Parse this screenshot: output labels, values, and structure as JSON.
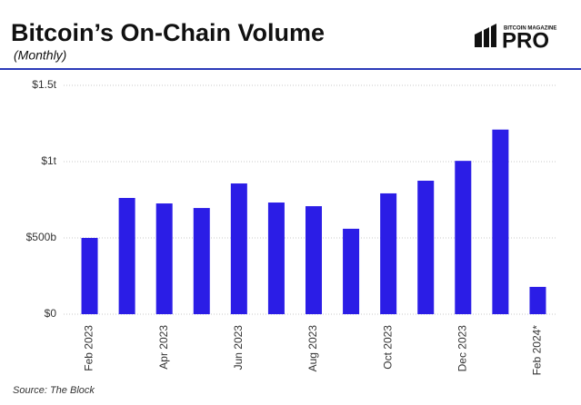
{
  "chart_data": {
    "type": "bar",
    "title": "Bitcoin’s On-Chain Volume",
    "subtitle": "(Monthly)",
    "brand": {
      "top": "BITCOIN MAGAZINE",
      "main": "PRO"
    },
    "source": "Source: The Block",
    "categories": [
      "Feb 2023",
      null,
      "Apr 2023",
      null,
      "Jun 2023",
      null,
      "Aug 2023",
      null,
      "Oct 2023",
      null,
      "Dec 2023",
      null,
      "Feb 2024*"
    ],
    "values": [
      500,
      762,
      726,
      696,
      857,
      732,
      708,
      560,
      792,
      875,
      1005,
      1210,
      179
    ],
    "color": "#2b1de6",
    "ylim": [
      0,
      1500
    ],
    "yticks": [
      {
        "value": 0,
        "label": "$0"
      },
      {
        "value": 500,
        "label": "$500b"
      },
      {
        "value": 1000,
        "label": "$1t"
      },
      {
        "value": 1500,
        "label": "$1.5t"
      }
    ],
    "grid": true
  }
}
